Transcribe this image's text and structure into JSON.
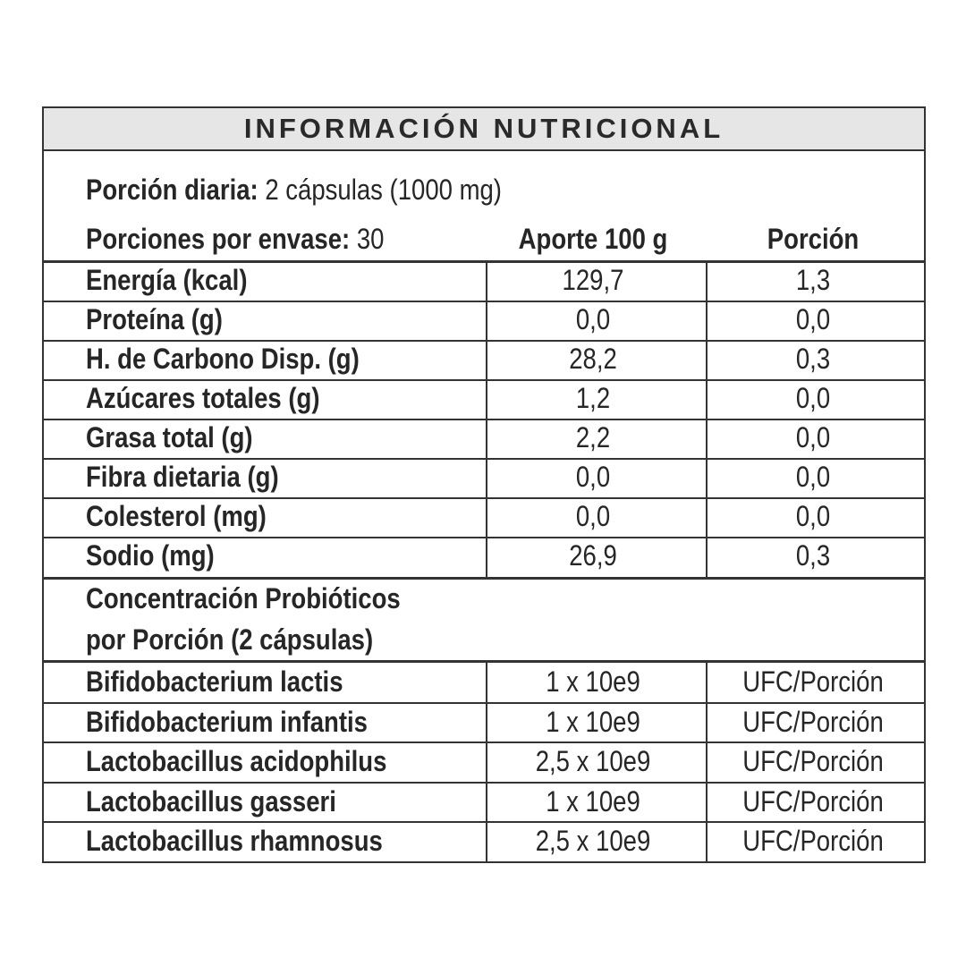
{
  "title": "INFORMACIÓN NUTRICIONAL",
  "serving": {
    "label": "Porción diaria:",
    "value": "2 cápsulas (1000 mg)"
  },
  "servings_per_container": {
    "label": "Porciones por envase:",
    "value": "30"
  },
  "columns": {
    "per100": "Aporte 100 g",
    "portion": "Porción"
  },
  "nutrients": [
    {
      "name": "Energía (kcal)",
      "per100": "129,7",
      "portion": "1,3"
    },
    {
      "name": "Proteína (g)",
      "per100": "0,0",
      "portion": "0,0"
    },
    {
      "name": "H. de Carbono Disp. (g)",
      "per100": "28,2",
      "portion": "0,3"
    },
    {
      "name": "Azúcares totales (g)",
      "per100": "1,2",
      "portion": "0,0"
    },
    {
      "name": "Grasa total (g)",
      "per100": "2,2",
      "portion": "0,0"
    },
    {
      "name": "Fibra dietaria (g)",
      "per100": "0,0",
      "portion": "0,0"
    },
    {
      "name": "Colesterol (mg)",
      "per100": "0,0",
      "portion": "0,0"
    },
    {
      "name": "Sodio (mg)",
      "per100": "26,9",
      "portion": "0,3"
    }
  ],
  "probiotics_heading": {
    "line1": "Concentración Probióticos",
    "line2": "por Porción (2 cápsulas)"
  },
  "probiotics": [
    {
      "name": "Bifidobacterium lactis",
      "amount": "1 x 10e9",
      "unit": "UFC/Porción"
    },
    {
      "name": "Bifidobacterium infantis",
      "amount": "1 x 10e9",
      "unit": "UFC/Porción"
    },
    {
      "name": "Lactobacillus acidophilus",
      "amount": "2,5 x 10e9",
      "unit": "UFC/Porción"
    },
    {
      "name": "Lactobacillus gasseri",
      "amount": "1 x 10e9",
      "unit": "UFC/Porción"
    },
    {
      "name": "Lactobacillus rhamnosus",
      "amount": "2,5 x 10e9",
      "unit": "UFC/Porción"
    }
  ]
}
